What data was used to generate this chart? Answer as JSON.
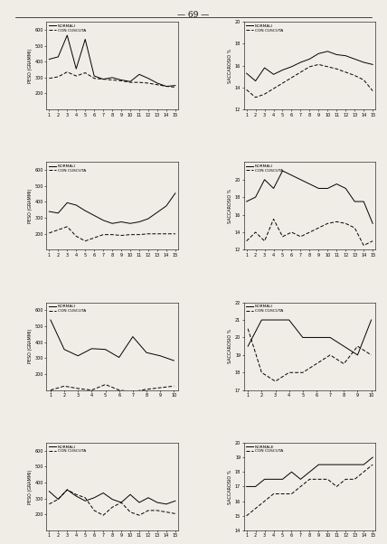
{
  "page_number": "— 69 —",
  "background_color": "#f0ede6",
  "axes_facecolor": "#f0ede6",
  "plots": [
    {
      "row": 0,
      "col": 0,
      "ylabel": "PESO (GRAMMI)",
      "ylim": [
        100,
        650
      ],
      "yticks": [
        200,
        300,
        400,
        500,
        600
      ],
      "xlim": [
        1,
        15
      ],
      "xticks": [
        1,
        2,
        3,
        4,
        5,
        6,
        7,
        8,
        9,
        10,
        11,
        12,
        13,
        14,
        15
      ],
      "normali": [
        415,
        430,
        565,
        355,
        540,
        310,
        290,
        300,
        285,
        275,
        320,
        295,
        265,
        245,
        250
      ],
      "cuscuta": [
        295,
        305,
        335,
        310,
        330,
        295,
        290,
        285,
        280,
        270,
        270,
        265,
        255,
        245,
        240
      ]
    },
    {
      "row": 0,
      "col": 1,
      "ylabel": "SACCAROSIO %",
      "ylim": [
        12,
        20
      ],
      "yticks": [
        12,
        14,
        16,
        18,
        20
      ],
      "xlim": [
        1,
        15
      ],
      "xticks": [
        1,
        2,
        3,
        4,
        5,
        6,
        7,
        8,
        9,
        10,
        11,
        12,
        13,
        14,
        15
      ],
      "normali": [
        15.3,
        14.6,
        15.8,
        15.2,
        15.6,
        15.9,
        16.3,
        16.6,
        17.1,
        17.3,
        17.0,
        16.9,
        16.6,
        16.3,
        16.1
      ],
      "cuscuta": [
        13.8,
        13.1,
        13.4,
        13.9,
        14.4,
        14.9,
        15.4,
        15.9,
        16.1,
        15.9,
        15.7,
        15.4,
        15.1,
        14.7,
        13.7
      ]
    },
    {
      "row": 1,
      "col": 0,
      "ylabel": "PESO (GRAMMI)",
      "ylim": [
        100,
        650
      ],
      "yticks": [
        200,
        300,
        400,
        500,
        600
      ],
      "xlim": [
        1,
        15
      ],
      "xticks": [
        1,
        2,
        3,
        4,
        5,
        6,
        7,
        8,
        9,
        10,
        11,
        12,
        13,
        14,
        15
      ],
      "normali": [
        340,
        330,
        395,
        380,
        345,
        315,
        285,
        265,
        275,
        265,
        275,
        295,
        335,
        375,
        455
      ],
      "cuscuta": [
        205,
        225,
        245,
        185,
        155,
        175,
        195,
        195,
        190,
        195,
        195,
        200,
        200,
        200,
        200
      ]
    },
    {
      "row": 1,
      "col": 1,
      "ylabel": "SACCAROSIO %",
      "ylim": [
        12,
        22
      ],
      "yticks": [
        12,
        14,
        16,
        18,
        20
      ],
      "xlim": [
        1,
        15
      ],
      "xticks": [
        1,
        2,
        3,
        4,
        5,
        6,
        7,
        8,
        9,
        10,
        11,
        12,
        13,
        14,
        15
      ],
      "normali": [
        17.5,
        18.0,
        20.0,
        19.0,
        21.0,
        20.5,
        20.0,
        19.5,
        19.0,
        19.0,
        19.5,
        19.0,
        17.5,
        17.5,
        15.0
      ],
      "cuscuta": [
        13.0,
        14.0,
        13.0,
        15.5,
        13.5,
        14.0,
        13.5,
        14.0,
        14.5,
        15.0,
        15.2,
        15.0,
        14.5,
        12.5,
        13.0
      ]
    },
    {
      "row": 2,
      "col": 0,
      "ylabel": "PESO (GRAMMI)",
      "ylim": [
        100,
        650
      ],
      "yticks": [
        200,
        300,
        400,
        500,
        600
      ],
      "xlim": [
        1,
        10
      ],
      "xticks": [
        1,
        2,
        3,
        4,
        5,
        6,
        7,
        8,
        9,
        10
      ],
      "normali": [
        540,
        355,
        315,
        360,
        355,
        305,
        435,
        335,
        315,
        285
      ],
      "cuscuta": [
        100,
        125,
        110,
        100,
        135,
        100,
        90,
        105,
        115,
        125
      ]
    },
    {
      "row": 2,
      "col": 1,
      "ylabel": "SACCAROSIO %",
      "ylim": [
        17,
        22
      ],
      "yticks": [
        17,
        18,
        19,
        20,
        21,
        22
      ],
      "xlim": [
        1,
        10
      ],
      "xticks": [
        1,
        2,
        3,
        4,
        5,
        6,
        7,
        8,
        9,
        10
      ],
      "normali": [
        19.5,
        21.0,
        21.0,
        21.0,
        20.0,
        20.0,
        20.0,
        19.5,
        19.0,
        21.0
      ],
      "cuscuta": [
        20.5,
        18.0,
        17.5,
        18.0,
        18.0,
        18.5,
        19.0,
        18.5,
        19.5,
        19.0
      ]
    },
    {
      "row": 3,
      "col": 0,
      "ylabel": "PESO (GRAMMI)",
      "ylim": [
        100,
        650
      ],
      "yticks": [
        200,
        300,
        400,
        500,
        600
      ],
      "xlim": [
        1,
        15
      ],
      "xticks": [
        1,
        2,
        3,
        4,
        5,
        6,
        7,
        8,
        9,
        10,
        11,
        12,
        13,
        14,
        15
      ],
      "normali": [
        345,
        295,
        355,
        315,
        285,
        305,
        335,
        295,
        275,
        325,
        275,
        305,
        275,
        265,
        285
      ],
      "cuscuta": [
        265,
        295,
        355,
        325,
        305,
        225,
        195,
        245,
        275,
        215,
        195,
        225,
        225,
        215,
        205
      ]
    },
    {
      "row": 3,
      "col": 1,
      "ylabel": "SACCAROSIO %",
      "ylim": [
        14,
        20
      ],
      "yticks": [
        14,
        15,
        16,
        17,
        18,
        19,
        20
      ],
      "xlim": [
        1,
        15
      ],
      "xticks": [
        1,
        2,
        3,
        4,
        5,
        6,
        7,
        8,
        9,
        10,
        11,
        12,
        13,
        14,
        15
      ],
      "normali": [
        17.0,
        17.0,
        17.5,
        17.5,
        17.5,
        18.0,
        17.5,
        18.0,
        18.5,
        18.5,
        18.5,
        18.5,
        18.5,
        18.5,
        19.0
      ],
      "cuscuta": [
        15.0,
        15.5,
        16.0,
        16.5,
        16.5,
        16.5,
        17.0,
        17.5,
        17.5,
        17.5,
        17.0,
        17.5,
        17.5,
        18.0,
        18.5
      ]
    }
  ],
  "legend_normali": "NORMALI",
  "legend_cuscuta": "CON CUSCUTA",
  "legend_normali_last": "NORMALE"
}
